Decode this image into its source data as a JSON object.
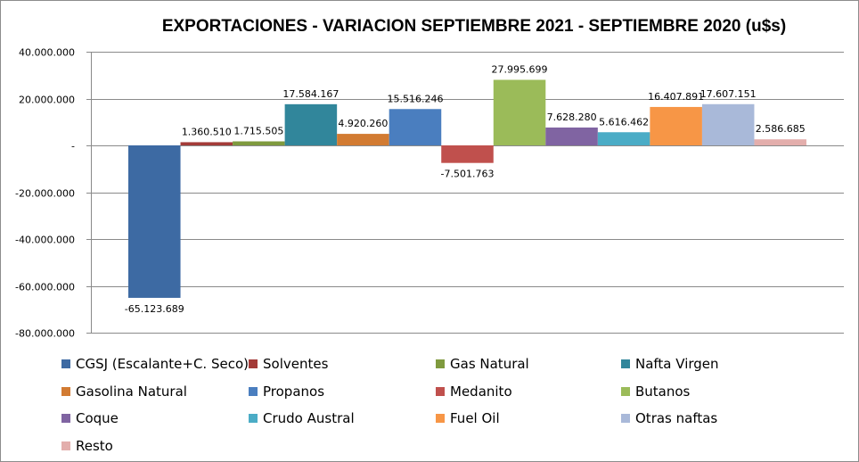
{
  "chart_data": {
    "type": "bar",
    "title": "EXPORTACIONES - VARIACION SEPTIEMBRE 2021 - SEPTIEMBRE 2020 (u$s)",
    "xlabel": "",
    "ylabel": "",
    "ylim": [
      -80000000,
      40000000
    ],
    "yticks": [
      40000000,
      20000000,
      0,
      -20000000,
      -40000000,
      -60000000,
      -80000000
    ],
    "ytick_labels": [
      "40.000.000",
      "20.000.000",
      "-",
      "-20.000.000",
      "-40.000.000",
      "-60.000.000",
      "-80.000.000"
    ],
    "grid": true,
    "legend_position": "bottom",
    "series": [
      {
        "name": "CGSJ (Escalante+C. Seco)",
        "value": -65123689,
        "label": "-65.123.689",
        "color": "#3d6aa3"
      },
      {
        "name": "Solventes",
        "value": 1360510,
        "label": "1.360.510",
        "color": "#a33b38"
      },
      {
        "name": "Gas Natural",
        "value": 1715505,
        "label": "1.715.505",
        "color": "#7f9a3e"
      },
      {
        "name": "Nafta Virgen",
        "value": 17584167,
        "label": "17.584.167",
        "color": "#31869b"
      },
      {
        "name": "Gasolina Natural",
        "value": 4920260,
        "label": "4.920.260",
        "color": "#d27b32"
      },
      {
        "name": "Propanos",
        "value": 15516246,
        "label": "15.516.246",
        "color": "#4a7ebf"
      },
      {
        "name": "Medanito",
        "value": -7501763,
        "label": "-7.501.763",
        "color": "#c0504d"
      },
      {
        "name": "Butanos",
        "value": 27995699,
        "label": "27.995.699",
        "color": "#9bbb59"
      },
      {
        "name": "Coque",
        "value": 7628280,
        "label": "7.628.280",
        "color": "#8064a2"
      },
      {
        "name": "Crudo Austral",
        "value": 5616462,
        "label": "5.616.462",
        "color": "#4bacc6"
      },
      {
        "name": "Fuel Oil",
        "value": 16407891,
        "label": "16.407.891",
        "color": "#f79646"
      },
      {
        "name": "Otras naftas",
        "value": 17607151,
        "label": "17.607.151",
        "color": "#a9b9d9"
      },
      {
        "name": "Resto",
        "value": 2586685,
        "label": "2.586.685",
        "color": "#e3aeac"
      }
    ]
  }
}
